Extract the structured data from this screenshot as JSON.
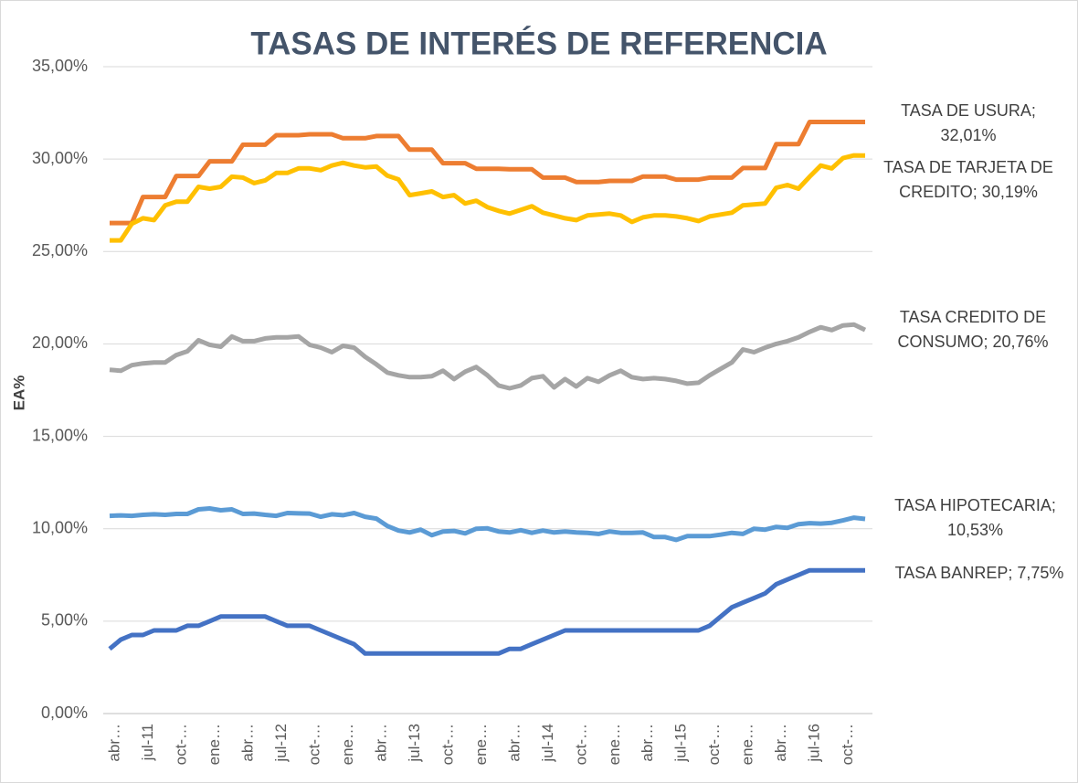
{
  "chart_data": {
    "type": "line",
    "title": "TASAS DE INTERÉS DE REFERENCIA",
    "y_label": "EA%",
    "categories": [
      "abr…",
      null,
      null,
      "jul-11",
      null,
      null,
      "oct-…",
      null,
      null,
      "ene…",
      null,
      null,
      "abr…",
      null,
      null,
      "jul-12",
      null,
      null,
      "oct-…",
      null,
      null,
      "ene…",
      null,
      null,
      "abr…",
      null,
      null,
      "jul-13",
      null,
      null,
      "oct-…",
      null,
      null,
      "ene…",
      null,
      null,
      "abr…",
      null,
      null,
      "jul-14",
      null,
      null,
      "oct-…",
      null,
      null,
      "ene…",
      null,
      null,
      "abr…",
      null,
      null,
      "jul-15",
      null,
      null,
      "oct-…",
      null,
      null,
      "ene…",
      null,
      null,
      "abr…",
      null,
      null,
      "jul-16",
      null,
      null,
      "oct-…",
      null,
      null
    ],
    "ylim": [
      0,
      35
    ],
    "yticks": [
      {
        "value": 0,
        "label": "0,00%"
      },
      {
        "value": 5,
        "label": "5,00%"
      },
      {
        "value": 10,
        "label": "10,00%"
      },
      {
        "value": 15,
        "label": "15,00%"
      },
      {
        "value": 20,
        "label": "20,00%"
      },
      {
        "value": 25,
        "label": "25,00%"
      },
      {
        "value": 30,
        "label": "30,00%"
      },
      {
        "value": 35,
        "label": "35,00%"
      }
    ],
    "grid": true,
    "series": [
      {
        "color": "#ED7D31",
        "values": [
          26.54,
          26.54,
          26.54,
          27.95,
          27.95,
          27.95,
          29.09,
          29.09,
          29.09,
          29.88,
          29.88,
          29.88,
          30.78,
          30.78,
          30.78,
          31.29,
          31.29,
          31.29,
          31.34,
          31.34,
          31.34,
          31.13,
          31.13,
          31.13,
          31.25,
          31.25,
          31.25,
          30.51,
          30.51,
          30.51,
          29.78,
          29.78,
          29.78,
          29.48,
          29.48,
          29.48,
          29.45,
          29.45,
          29.45,
          29.0,
          29.0,
          29.0,
          28.76,
          28.76,
          28.76,
          28.82,
          28.82,
          28.82,
          29.06,
          29.06,
          29.06,
          28.89,
          28.89,
          28.89,
          29.0,
          29.0,
          29.0,
          29.52,
          29.52,
          29.52,
          30.81,
          30.81,
          30.81,
          32.01,
          32.01,
          32.01,
          32.01,
          32.01,
          32.01
        ],
        "value_labels": [
          null,
          null,
          null,
          null,
          null,
          null,
          null,
          null,
          null,
          null,
          null,
          null,
          null,
          null,
          null,
          null,
          null,
          null,
          null,
          null,
          null,
          null,
          null,
          null,
          null,
          null,
          null,
          null,
          null,
          null,
          null,
          null,
          null,
          null,
          null,
          null,
          null,
          null,
          null,
          null,
          null,
          null,
          null,
          null,
          null,
          null,
          null,
          null,
          null,
          null,
          null,
          null,
          null,
          null,
          null,
          null,
          null,
          null,
          null,
          null,
          null,
          null,
          null,
          null,
          null,
          null,
          null,
          null,
          "TASA DE USURA; 32,01%"
        ]
      },
      {
        "color": "#FFC000",
        "values": [
          25.6,
          25.6,
          26.5,
          26.8,
          26.7,
          27.5,
          27.7,
          27.7,
          28.5,
          28.4,
          28.5,
          29.05,
          29.0,
          28.7,
          28.85,
          29.25,
          29.25,
          29.5,
          29.5,
          29.4,
          29.65,
          29.8,
          29.65,
          29.55,
          29.6,
          29.1,
          28.9,
          28.05,
          28.15,
          28.25,
          27.95,
          28.05,
          27.6,
          27.75,
          27.4,
          27.2,
          27.05,
          27.25,
          27.45,
          27.1,
          26.95,
          26.8,
          26.7,
          26.95,
          27.0,
          27.05,
          26.95,
          26.6,
          26.85,
          26.95,
          26.95,
          26.9,
          26.8,
          26.65,
          26.9,
          27.0,
          27.1,
          27.5,
          27.55,
          27.6,
          28.45,
          28.6,
          28.4,
          29.05,
          29.65,
          29.5,
          30.05,
          30.2,
          30.19
        ],
        "value_labels": [
          null,
          null,
          null,
          null,
          null,
          null,
          null,
          null,
          null,
          null,
          null,
          null,
          null,
          null,
          null,
          null,
          null,
          null,
          null,
          null,
          null,
          null,
          null,
          null,
          null,
          null,
          null,
          null,
          null,
          null,
          null,
          null,
          null,
          null,
          null,
          null,
          null,
          null,
          null,
          null,
          null,
          null,
          null,
          null,
          null,
          null,
          null,
          null,
          null,
          null,
          null,
          null,
          null,
          null,
          null,
          null,
          null,
          null,
          null,
          null,
          null,
          null,
          null,
          null,
          null,
          null,
          null,
          null,
          "TASA DE TARJETA DE CREDITO; 30,19%"
        ]
      },
      {
        "color": "#A5A5A5",
        "values": [
          18.6,
          18.55,
          18.85,
          18.95,
          19.0,
          19.0,
          19.4,
          19.6,
          20.2,
          19.95,
          19.85,
          20.4,
          20.15,
          20.15,
          20.3,
          20.35,
          20.35,
          20.4,
          19.95,
          19.8,
          19.55,
          19.9,
          19.8,
          19.3,
          18.9,
          18.45,
          18.3,
          18.2,
          18.2,
          18.25,
          18.55,
          18.1,
          18.5,
          18.75,
          18.3,
          17.75,
          17.6,
          17.75,
          18.15,
          18.25,
          17.65,
          18.1,
          17.7,
          18.15,
          17.95,
          18.3,
          18.55,
          18.2,
          18.1,
          18.15,
          18.1,
          18.0,
          17.85,
          17.9,
          18.3,
          18.65,
          19.0,
          19.7,
          19.55,
          19.8,
          20.0,
          20.15,
          20.35,
          20.65,
          20.9,
          20.75,
          21.0,
          21.05,
          20.76
        ],
        "value_labels": [
          null,
          null,
          null,
          null,
          null,
          null,
          null,
          null,
          null,
          null,
          null,
          null,
          null,
          null,
          null,
          null,
          null,
          null,
          null,
          null,
          null,
          null,
          null,
          null,
          null,
          null,
          null,
          null,
          null,
          null,
          null,
          null,
          null,
          null,
          null,
          null,
          null,
          null,
          null,
          null,
          null,
          null,
          null,
          null,
          null,
          null,
          null,
          null,
          null,
          null,
          null,
          null,
          null,
          null,
          null,
          null,
          null,
          null,
          null,
          null,
          null,
          null,
          null,
          null,
          null,
          null,
          null,
          null,
          "TASA CREDITO DE CONSUMO; 20,76%"
        ]
      },
      {
        "color": "#5B9BD5",
        "values": [
          10.7,
          10.72,
          10.7,
          10.75,
          10.78,
          10.75,
          10.8,
          10.8,
          11.05,
          11.1,
          11.0,
          11.05,
          10.8,
          10.82,
          10.75,
          10.7,
          10.85,
          10.83,
          10.82,
          10.65,
          10.78,
          10.73,
          10.85,
          10.65,
          10.55,
          10.15,
          9.9,
          9.8,
          9.95,
          9.65,
          9.85,
          9.88,
          9.75,
          10.0,
          10.02,
          9.85,
          9.8,
          9.92,
          9.78,
          9.9,
          9.8,
          9.85,
          9.8,
          9.78,
          9.72,
          9.85,
          9.78,
          9.78,
          9.8,
          9.55,
          9.55,
          9.4,
          9.6,
          9.6,
          9.6,
          9.68,
          9.78,
          9.72,
          10.0,
          9.95,
          10.1,
          10.05,
          10.25,
          10.3,
          10.28,
          10.32,
          10.45,
          10.6,
          10.53
        ],
        "value_labels": [
          null,
          null,
          null,
          null,
          null,
          null,
          null,
          null,
          null,
          null,
          null,
          null,
          null,
          null,
          null,
          null,
          null,
          null,
          null,
          null,
          null,
          null,
          null,
          null,
          null,
          null,
          null,
          null,
          null,
          null,
          null,
          null,
          null,
          null,
          null,
          null,
          null,
          null,
          null,
          null,
          null,
          null,
          null,
          null,
          null,
          null,
          null,
          null,
          null,
          null,
          null,
          null,
          null,
          null,
          null,
          null,
          null,
          null,
          null,
          null,
          null,
          null,
          null,
          null,
          null,
          null,
          null,
          null,
          "TASA HIPOTECARIA; 10,53%"
        ]
      },
      {
        "color": "#4472C4",
        "values": [
          3.5,
          4.0,
          4.25,
          4.25,
          4.5,
          4.5,
          4.5,
          4.75,
          4.75,
          5.0,
          5.25,
          5.25,
          5.25,
          5.25,
          5.25,
          5.0,
          4.75,
          4.75,
          4.75,
          4.5,
          4.25,
          4.0,
          3.75,
          3.25,
          3.25,
          3.25,
          3.25,
          3.25,
          3.25,
          3.25,
          3.25,
          3.25,
          3.25,
          3.25,
          3.25,
          3.25,
          3.5,
          3.5,
          3.75,
          4.0,
          4.25,
          4.5,
          4.5,
          4.5,
          4.5,
          4.5,
          4.5,
          4.5,
          4.5,
          4.5,
          4.5,
          4.5,
          4.5,
          4.5,
          4.75,
          5.25,
          5.75,
          6.0,
          6.25,
          6.5,
          7.0,
          7.25,
          7.5,
          7.75,
          7.75,
          7.75,
          7.75,
          7.75,
          7.75
        ],
        "value_labels": [
          null,
          null,
          null,
          null,
          null,
          null,
          null,
          null,
          null,
          null,
          null,
          null,
          null,
          null,
          null,
          null,
          null,
          null,
          null,
          null,
          null,
          null,
          null,
          null,
          null,
          null,
          null,
          null,
          null,
          null,
          null,
          null,
          null,
          null,
          null,
          null,
          null,
          null,
          null,
          null,
          null,
          null,
          null,
          null,
          null,
          null,
          null,
          null,
          null,
          null,
          null,
          null,
          null,
          null,
          null,
          null,
          null,
          null,
          null,
          null,
          null,
          null,
          null,
          null,
          null,
          null,
          null,
          null,
          "TASA BANREP; 7,75%"
        ]
      }
    ]
  }
}
